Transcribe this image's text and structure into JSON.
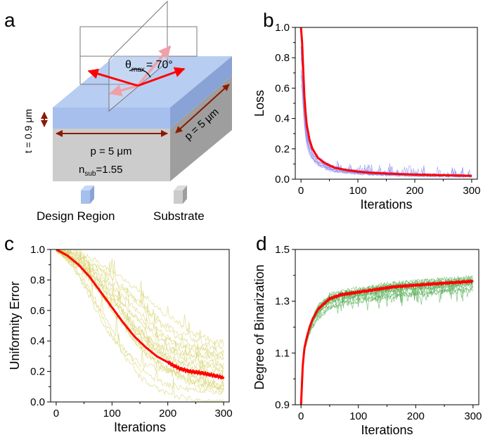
{
  "colors": {
    "red": "#ff0000",
    "blue_thin": "#8c8cf0",
    "yellow_thin": "#d6d26a",
    "green_thin": "#58b058",
    "design_top": "#b8cdf2",
    "design_front": "#a6bfec",
    "design_side": "#8aa3d6",
    "sub_front": "#cccccc",
    "sub_side": "#9e9e9e",
    "arrow_dark": "#8b1a00",
    "pink": "#f0a0a8",
    "plane_edge": "#777777"
  },
  "panel_a": {
    "letter": "a",
    "theta_symbol": "θ",
    "theta_sub": "max",
    "theta_value": "= 70°",
    "thickness_label": "t = 0.9 μm",
    "period_front": "p = 5 μm",
    "period_side": "p = 5 μm",
    "n_symbol": "n",
    "n_sub": "sub",
    "n_value": "=1.55",
    "legend_design": "Design Region",
    "legend_substrate": "Substrate"
  },
  "chart_data": [
    {
      "id": "b",
      "letter": "b",
      "type": "line",
      "xlabel": "Iterations",
      "ylabel": "Loss",
      "xlim": [
        -10,
        310
      ],
      "ylim": [
        0.0,
        1.0
      ],
      "xticks": [
        "0",
        "100",
        "200",
        "300"
      ],
      "xtick_values": [
        0,
        100,
        200,
        300
      ],
      "yticks": [
        "0.0",
        "0.2",
        "0.4",
        "0.6",
        "0.8",
        "1.0"
      ],
      "ytick_values": [
        0.0,
        0.2,
        0.4,
        0.6,
        0.8,
        1.0
      ],
      "thin_color": "#8c8cf0",
      "mean_color": "#ff0000",
      "mean_x": [
        0,
        2,
        4,
        6,
        8,
        10,
        15,
        20,
        30,
        40,
        50,
        60,
        80,
        100,
        120,
        150,
        200,
        250,
        300
      ],
      "mean_y": [
        1.0,
        0.9,
        0.72,
        0.55,
        0.44,
        0.36,
        0.26,
        0.2,
        0.14,
        0.11,
        0.09,
        0.075,
        0.06,
        0.05,
        0.043,
        0.037,
        0.03,
        0.026,
        0.022
      ],
      "runs": 14
    },
    {
      "id": "c",
      "letter": "c",
      "type": "line",
      "xlabel": "Iterations",
      "ylabel": "Uniformity Error",
      "xlim": [
        -10,
        310
      ],
      "ylim": [
        0.0,
        1.0
      ],
      "xticks": [
        "0",
        "100",
        "200",
        "300"
      ],
      "xtick_values": [
        0,
        100,
        200,
        300
      ],
      "yticks": [
        "0.0",
        "0.2",
        "0.4",
        "0.6",
        "0.8",
        "1.0"
      ],
      "ytick_values": [
        0.0,
        0.2,
        0.4,
        0.6,
        0.8,
        1.0
      ],
      "thin_color": "#d6d26a",
      "mean_color": "#ff0000",
      "mean_x": [
        0,
        20,
        40,
        60,
        80,
        100,
        120,
        140,
        160,
        180,
        200,
        220,
        240,
        260,
        280,
        300
      ],
      "mean_y": [
        1.0,
        0.96,
        0.9,
        0.82,
        0.72,
        0.62,
        0.52,
        0.43,
        0.36,
        0.3,
        0.26,
        0.22,
        0.2,
        0.19,
        0.175,
        0.16
      ],
      "runs": 18
    },
    {
      "id": "d",
      "letter": "d",
      "type": "line",
      "xlabel": "Iterations",
      "ylabel": "Degree of Binarization",
      "xlim": [
        -10,
        310
      ],
      "ylim": [
        0.9,
        1.5
      ],
      "xticks": [
        "0",
        "100",
        "200",
        "300"
      ],
      "xtick_values": [
        0,
        100,
        200,
        300
      ],
      "yticks": [
        "0.9",
        "1.1",
        "1.3",
        "1.5"
      ],
      "ytick_values": [
        0.9,
        1.1,
        1.3,
        1.5
      ],
      "thin_color": "#58b058",
      "mean_color": "#ff0000",
      "mean_x": [
        0,
        3,
        6,
        10,
        15,
        20,
        30,
        40,
        50,
        70,
        100,
        130,
        160,
        200,
        250,
        300
      ],
      "mean_y": [
        0.9,
        1.05,
        1.12,
        1.16,
        1.2,
        1.23,
        1.27,
        1.29,
        1.31,
        1.325,
        1.335,
        1.345,
        1.355,
        1.362,
        1.37,
        1.377
      ],
      "runs": 16
    }
  ]
}
